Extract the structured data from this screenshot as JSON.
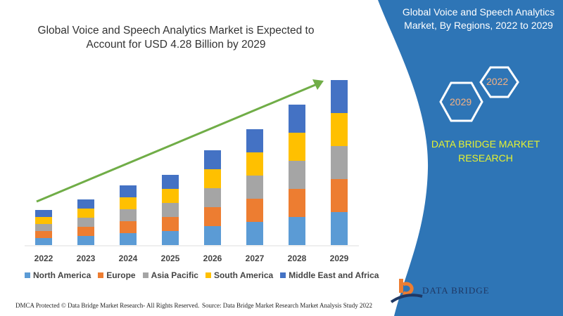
{
  "header": {
    "title": "Global Voice and Speech Analytics Market is Expected to Account for USD 4.28 Billion by 2029"
  },
  "side_panel": {
    "title": "Global Voice and Speech Analytics Market, By Regions, 2022 to 2029",
    "hex_start": "2022",
    "hex_end": "2029",
    "brand": "DATA BRIDGE MARKET RESEARCH",
    "logo_text": "DATA BRIDGE",
    "bg_color": "#2e75b6"
  },
  "footer": {
    "left": "DMCA Protected © Data Bridge Market Research- All Rights Reserved.",
    "right": "Source: Data Bridge Market Research Market Analysis Study 2022"
  },
  "chart_data": {
    "type": "bar",
    "stacked": true,
    "title": "",
    "xlabel": "",
    "ylabel": "",
    "grid": false,
    "legend_position": "bottom",
    "categories": [
      "2022",
      "2023",
      "2024",
      "2025",
      "2026",
      "2027",
      "2028",
      "2029"
    ],
    "series": [
      {
        "name": "North America",
        "color": "#5b9bd5",
        "values": [
          10,
          13,
          17,
          20,
          27,
          33,
          40,
          47
        ]
      },
      {
        "name": "Europe",
        "color": "#ed7d31",
        "values": [
          10,
          13,
          17,
          20,
          27,
          33,
          40,
          47
        ]
      },
      {
        "name": "Asia Pacific",
        "color": "#a5a5a5",
        "values": [
          10,
          13,
          17,
          20,
          27,
          33,
          40,
          47
        ]
      },
      {
        "name": "South America",
        "color": "#ffc000",
        "values": [
          10,
          13,
          17,
          20,
          27,
          33,
          40,
          47
        ]
      },
      {
        "name": "Middle East and Africa",
        "color": "#4472c4",
        "values": [
          10,
          13,
          17,
          20,
          27,
          33,
          40,
          47
        ]
      }
    ],
    "trend_arrow_color": "#70ad47"
  }
}
